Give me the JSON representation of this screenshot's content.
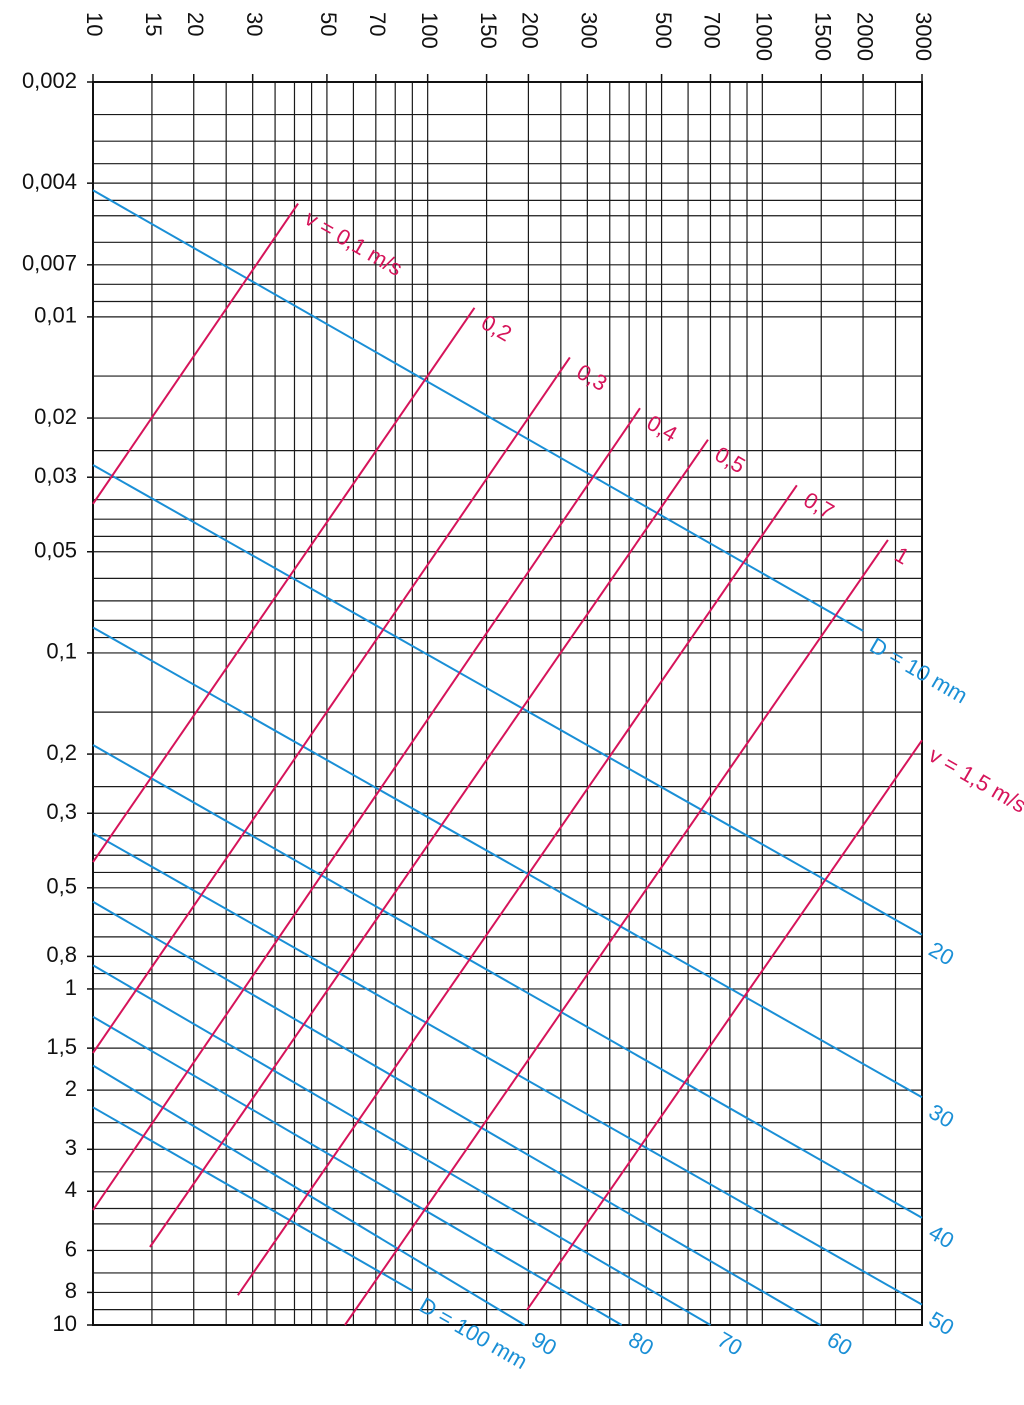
{
  "chart_data": {
    "type": "line",
    "xscale": "log",
    "yscale": "log",
    "yreverse": true,
    "xaxis_position": "top",
    "grid": true,
    "xlim": [
      10,
      3000
    ],
    "xticks": [
      10,
      15,
      20,
      30,
      50,
      70,
      100,
      150,
      200,
      300,
      500,
      700,
      1000,
      1500,
      2000,
      3000
    ],
    "x_grid": [
      10,
      15,
      20,
      25,
      30,
      35,
      40,
      45,
      50,
      60,
      70,
      80,
      90,
      100,
      150,
      200,
      250,
      300,
      350,
      400,
      450,
      500,
      600,
      700,
      800,
      900,
      1000,
      1500,
      2000,
      2500,
      3000
    ],
    "ylim": [
      0.002,
      10
    ],
    "yticks": [
      {
        "value": 0.002,
        "label": "0,002"
      },
      {
        "value": 0.004,
        "label": "0,004"
      },
      {
        "value": 0.007,
        "label": "0,007"
      },
      {
        "value": 0.01,
        "label": "0,01"
      },
      {
        "value": 0.02,
        "label": "0,02"
      },
      {
        "value": 0.03,
        "label": "0,03"
      },
      {
        "value": 0.05,
        "label": "0,05"
      },
      {
        "value": 0.1,
        "label": "0,1"
      },
      {
        "value": 0.2,
        "label": "0,2"
      },
      {
        "value": 0.3,
        "label": "0,3"
      },
      {
        "value": 0.5,
        "label": "0,5"
      },
      {
        "value": 0.8,
        "label": "0,8"
      },
      1,
      {
        "value": 1.5,
        "label": "1,5"
      },
      2,
      3,
      4,
      6,
      8,
      10
    ],
    "y_grid": [
      0.002,
      0.0025,
      0.003,
      0.0035,
      0.004,
      0.0045,
      0.005,
      0.006,
      0.007,
      0.008,
      0.009,
      0.01,
      0.015,
      0.02,
      0.025,
      0.03,
      0.035,
      0.04,
      0.045,
      0.05,
      0.06,
      0.07,
      0.08,
      0.09,
      0.1,
      0.15,
      0.2,
      0.25,
      0.3,
      0.35,
      0.4,
      0.45,
      0.5,
      0.6,
      0.7,
      0.8,
      0.9,
      1,
      1.5,
      2,
      2.5,
      3,
      3.5,
      4,
      4.5,
      5,
      6,
      7,
      8,
      9,
      10
    ],
    "series": [
      {
        "name": "D = 10 mm",
        "color": "#1a8fd6",
        "x": [
          10,
          2000
        ],
        "y": [
          0.0042,
          0.086
        ]
      },
      {
        "name": "20",
        "color": "#1a8fd6",
        "x": [
          10,
          3000
        ],
        "y": [
          0.0276,
          0.69
        ]
      },
      {
        "name": "30",
        "color": "#1a8fd6",
        "x": [
          10,
          3000
        ],
        "y": [
          0.084,
          2.1
        ]
      },
      {
        "name": "40",
        "color": "#1a8fd6",
        "x": [
          10,
          3000
        ],
        "y": [
          0.188,
          4.8
        ]
      },
      {
        "name": "50",
        "color": "#1a8fd6",
        "x": [
          10,
          3000
        ],
        "y": [
          0.344,
          8.7
        ]
      },
      {
        "name": "60",
        "color": "#1a8fd6",
        "x": [
          10,
          1490
        ],
        "y": [
          0.55,
          10
        ]
      },
      {
        "name": "70",
        "color": "#1a8fd6",
        "x": [
          10,
          700
        ],
        "y": [
          0.85,
          10
        ]
      },
      {
        "name": "80",
        "color": "#1a8fd6",
        "x": [
          10,
          380
        ],
        "y": [
          1.21,
          10
        ]
      },
      {
        "name": "90",
        "color": "#1a8fd6",
        "x": [
          10,
          195
        ],
        "y": [
          1.69,
          10
        ]
      },
      {
        "name": "D = 100 mm",
        "color": "#1a8fd6",
        "x": [
          10,
          90
        ],
        "y": [
          2.25,
          7.9
        ]
      },
      {
        "name": "v = 0,1 m/s",
        "color": "#d6145a",
        "x": [
          10,
          41
        ],
        "y": [
          0.036,
          0.0046
        ]
      },
      {
        "name": "0,2",
        "color": "#d6145a",
        "x": [
          10,
          138
        ],
        "y": [
          0.419,
          0.0094
        ]
      },
      {
        "name": "0,3",
        "color": "#d6145a",
        "x": [
          10,
          266
        ],
        "y": [
          1.55,
          0.0132
        ]
      },
      {
        "name": "0,4",
        "color": "#d6145a",
        "x": [
          10,
          431
        ],
        "y": [
          4.55,
          0.0187
        ]
      },
      {
        "name": "0,5",
        "color": "#d6145a",
        "x": [
          14.8,
          688
        ],
        "y": [
          5.86,
          0.0232
        ]
      },
      {
        "name": "0,7",
        "color": "#d6145a",
        "x": [
          27.1,
          1268
        ],
        "y": [
          8.15,
          0.0317
        ]
      },
      {
        "name": "1",
        "color": "#d6145a",
        "x": [
          56.6,
          2373
        ],
        "y": [
          10,
          0.0461
        ]
      },
      {
        "name": "v = 1,5 m/s",
        "color": "#d6145a",
        "x": [
          198,
          3000
        ],
        "y": [
          9.03,
          0.182
        ]
      }
    ]
  }
}
